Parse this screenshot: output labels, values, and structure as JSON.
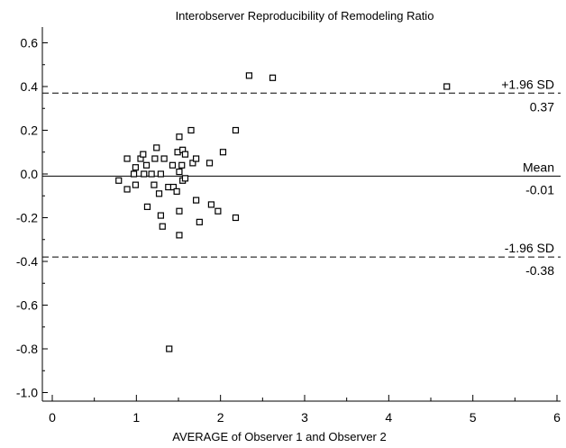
{
  "chart_data": {
    "type": "scatter",
    "title": "Interobserver Reproducibility of Remodeling Ratio",
    "xlabel": "AVERAGE of Observer 1 and Observer 2",
    "ylabel": "",
    "xlim": [
      0,
      6
    ],
    "ylim": [
      -1.0,
      0.6
    ],
    "x_ticks": [
      "0",
      "1",
      "2",
      "3",
      "4",
      "5",
      "6"
    ],
    "y_ticks": [
      "0.6",
      "0.4",
      "0.2",
      "0.0",
      "-0.2",
      "-0.4",
      "-0.6",
      "-0.8",
      "-1.0"
    ],
    "grid": false,
    "marker": "open-square",
    "reference_lines": [
      {
        "label": "+1.96 SD",
        "value": 0.37,
        "value_label": "0.37",
        "style": "dashed"
      },
      {
        "label": "Mean",
        "value": -0.01,
        "value_label": "-0.01",
        "style": "solid"
      },
      {
        "label": "-1.96 SD",
        "value": -0.38,
        "value_label": "-0.38",
        "style": "dashed"
      }
    ],
    "points": [
      [
        0.79,
        -0.03
      ],
      [
        0.89,
        0.07
      ],
      [
        0.89,
        -0.07
      ],
      [
        0.97,
        0.0
      ],
      [
        0.99,
        0.03
      ],
      [
        0.99,
        -0.05
      ],
      [
        1.05,
        0.07
      ],
      [
        1.08,
        0.09
      ],
      [
        1.09,
        0.0
      ],
      [
        1.12,
        0.04
      ],
      [
        1.13,
        -0.15
      ],
      [
        1.18,
        0.0
      ],
      [
        1.21,
        -0.05
      ],
      [
        1.22,
        0.07
      ],
      [
        1.24,
        0.12
      ],
      [
        1.27,
        -0.09
      ],
      [
        1.29,
        0.0
      ],
      [
        1.29,
        -0.19
      ],
      [
        1.31,
        -0.24
      ],
      [
        1.33,
        0.07
      ],
      [
        1.38,
        -0.06
      ],
      [
        1.39,
        -0.8
      ],
      [
        1.43,
        0.04
      ],
      [
        1.44,
        -0.06
      ],
      [
        1.48,
        -0.08
      ],
      [
        1.49,
        0.1
      ],
      [
        1.51,
        0.17
      ],
      [
        1.51,
        0.01
      ],
      [
        1.51,
        -0.17
      ],
      [
        1.51,
        -0.28
      ],
      [
        1.54,
        0.04
      ],
      [
        1.55,
        0.11
      ],
      [
        1.55,
        -0.03
      ],
      [
        1.58,
        0.09
      ],
      [
        1.58,
        -0.02
      ],
      [
        1.65,
        0.2
      ],
      [
        1.67,
        0.05
      ],
      [
        1.71,
        0.07
      ],
      [
        1.71,
        -0.12
      ],
      [
        1.75,
        -0.22
      ],
      [
        1.87,
        0.05
      ],
      [
        1.89,
        -0.14
      ],
      [
        1.97,
        -0.17
      ],
      [
        2.03,
        0.1
      ],
      [
        2.18,
        0.2
      ],
      [
        2.18,
        -0.2
      ],
      [
        2.34,
        0.45
      ],
      [
        2.62,
        0.44
      ],
      [
        4.69,
        0.4
      ]
    ]
  }
}
